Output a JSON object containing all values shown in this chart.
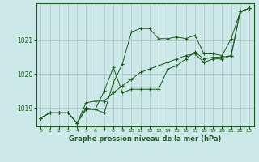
{
  "title": "Graphe pression niveau de la mer (hPa)",
  "bg_color": "#cce8e8",
  "grid_color": "#b0c8c8",
  "line_color": "#1a5c1a",
  "xlim": [
    -0.5,
    23.5
  ],
  "ylim": [
    1018.45,
    1022.1
  ],
  "xticks": [
    0,
    1,
    2,
    3,
    4,
    5,
    6,
    7,
    8,
    9,
    10,
    11,
    12,
    13,
    14,
    15,
    16,
    17,
    18,
    19,
    20,
    21,
    22,
    23
  ],
  "yticks": [
    1019,
    1020,
    1021
  ],
  "series": [
    [
      1018.7,
      1018.85,
      1018.85,
      1018.85,
      1018.55,
      1019.0,
      1018.95,
      1018.85,
      1019.75,
      1020.3,
      1021.25,
      1021.35,
      1021.35,
      1021.05,
      1021.05,
      1021.1,
      1021.05,
      1021.15,
      1020.6,
      1020.6,
      1020.55,
      1021.05,
      1021.85,
      1021.95
    ],
    [
      1018.7,
      1018.85,
      1018.85,
      1018.85,
      1018.55,
      1018.95,
      1018.95,
      1019.5,
      1020.2,
      1019.45,
      1019.55,
      1019.55,
      1019.55,
      1019.55,
      1020.15,
      1020.25,
      1020.45,
      1020.65,
      1020.45,
      1020.5,
      1020.5,
      1020.55,
      1021.85,
      1021.95
    ],
    [
      1018.7,
      1018.85,
      1018.85,
      1018.85,
      1018.55,
      1019.15,
      1019.2,
      1019.2,
      1019.45,
      1019.65,
      1019.85,
      1020.05,
      1020.15,
      1020.25,
      1020.35,
      1020.45,
      1020.55,
      1020.6,
      1020.35,
      1020.45,
      1020.45,
      1020.55,
      1021.85,
      1021.95
    ]
  ]
}
